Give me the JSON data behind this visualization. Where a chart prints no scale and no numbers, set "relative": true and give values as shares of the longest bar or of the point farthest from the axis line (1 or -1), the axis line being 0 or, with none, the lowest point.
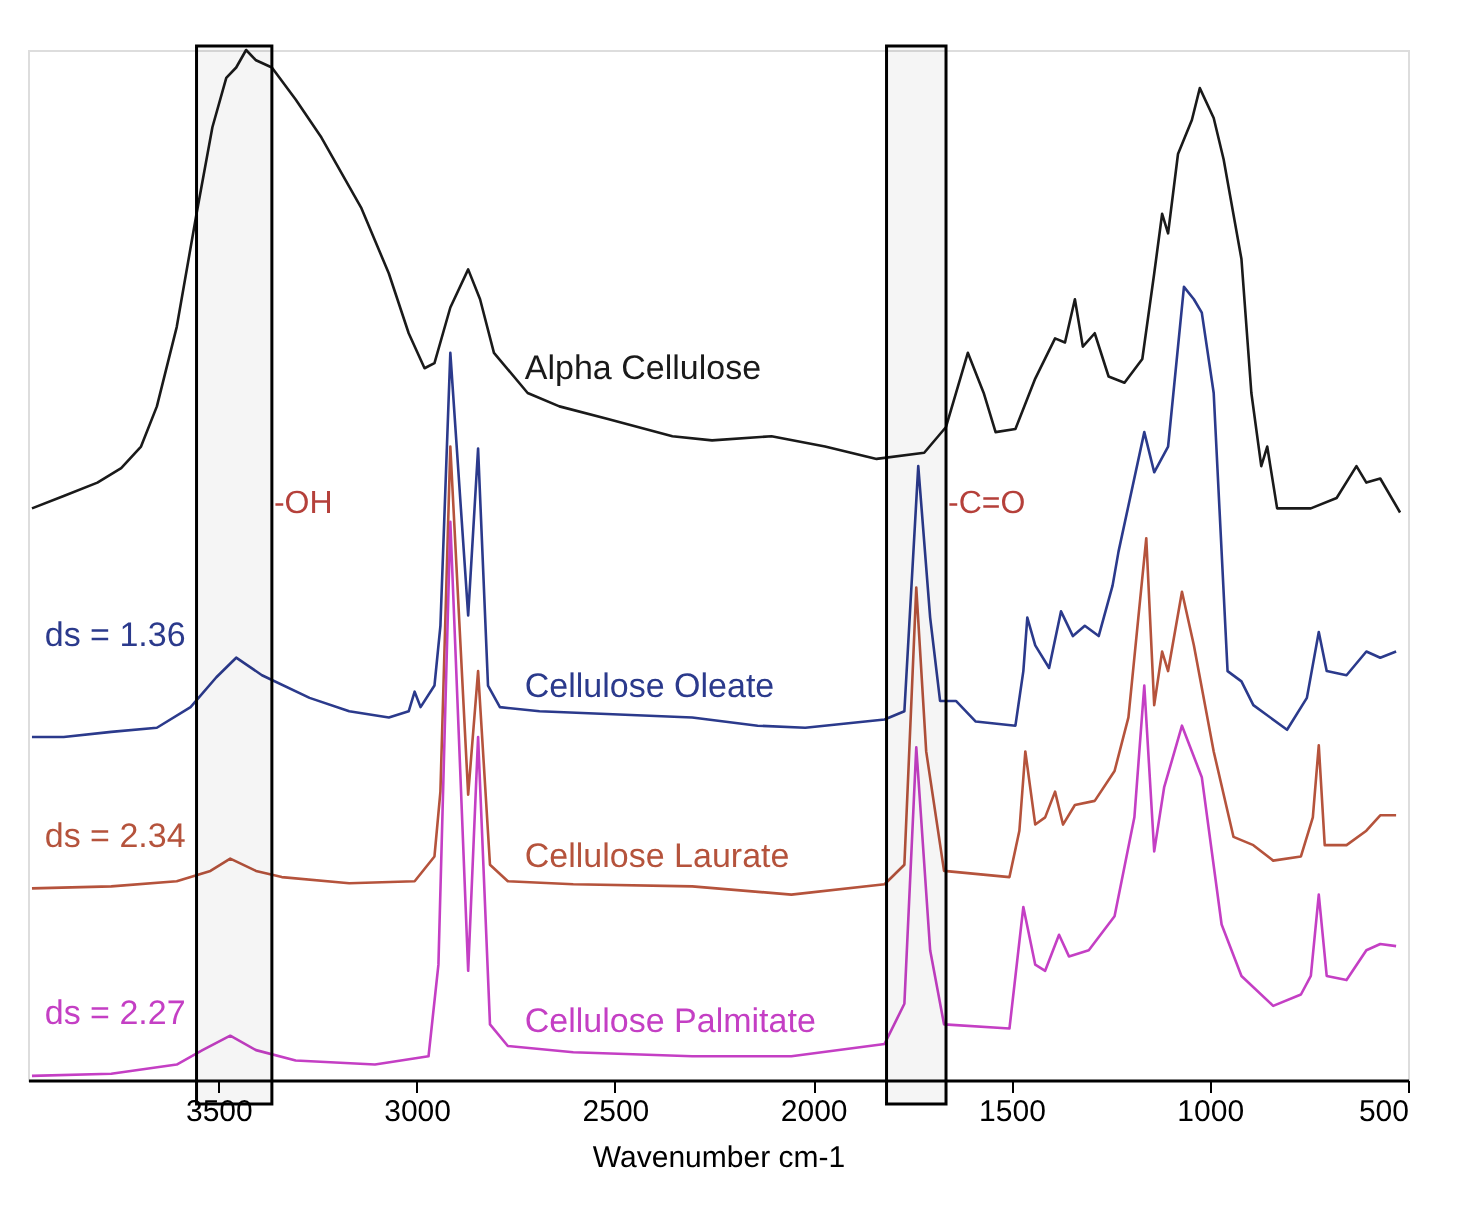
{
  "chart_data": {
    "type": "line",
    "relative": true,
    "xlabel": "Wavenumber cm-1",
    "xlim": [
      3980,
      500
    ],
    "xticks": [
      3500,
      3000,
      2500,
      2000,
      1500,
      1000,
      500
    ],
    "grid": false,
    "legend": false,
    "tick_labels": "x",
    "marker": "none",
    "line_style": "solid",
    "x": [
      3970,
      3890,
      3805,
      3745,
      3695,
      3655,
      3605,
      3555,
      3515,
      3480,
      3455,
      3430,
      3405,
      3365,
      3305,
      3240,
      3140,
      3070,
      3020,
      2980,
      2955,
      2915,
      2870,
      2840,
      2805,
      2720,
      2640,
      2520,
      2355,
      2255,
      2105,
      1970,
      1840,
      1720,
      1665,
      1610,
      1570,
      1540,
      1490,
      1440,
      1390,
      1365,
      1340,
      1320,
      1290,
      1255,
      1215,
      1170,
      1140,
      1120,
      1105,
      1080,
      1045,
      1025,
      990,
      965,
      920,
      895,
      870,
      855,
      830,
      745,
      680,
      630,
      605,
      570,
      520
    ],
    "series": [
      {
        "name": "Alpha Cellulose",
        "color": "#1a1a1a",
        "values": [
          0.555,
          0.567,
          0.58,
          0.594,
          0.615,
          0.654,
          0.731,
          0.841,
          0.925,
          0.973,
          0.983,
          1.0,
          0.99,
          0.983,
          0.952,
          0.915,
          0.847,
          0.783,
          0.725,
          0.691,
          0.696,
          0.75,
          0.787,
          0.758,
          0.706,
          0.667,
          0.654,
          0.642,
          0.625,
          0.621,
          0.625,
          0.615,
          0.603,
          0.609,
          0.634,
          0.706,
          0.667,
          0.629,
          0.632,
          0.681,
          0.72,
          0.716,
          0.758,
          0.712,
          0.725,
          0.683,
          0.677,
          0.7,
          0.783,
          0.841,
          0.822,
          0.899,
          0.932,
          0.963,
          0.934,
          0.894,
          0.797,
          0.667,
          0.596,
          0.615,
          0.555,
          0.555,
          0.565,
          0.596,
          0.58,
          0.584,
          0.551
        ]
      },
      {
        "name": "Cellulose Oleate",
        "color": "#2b3a8c",
        "x": [
          3970,
          3890,
          3770,
          3655,
          3570,
          3505,
          3455,
          3390,
          3270,
          3170,
          3070,
          3020,
          3005,
          2990,
          2955,
          2940,
          2915,
          2870,
          2845,
          2820,
          2790,
          2690,
          2305,
          2140,
          2020,
          1820,
          1770,
          1735,
          1705,
          1680,
          1640,
          1590,
          1490,
          1470,
          1460,
          1440,
          1405,
          1375,
          1345,
          1315,
          1280,
          1245,
          1230,
          1165,
          1140,
          1105,
          1065,
          1040,
          1020,
          990,
          955,
          920,
          890,
          805,
          755,
          725,
          705,
          655,
          605,
          570,
          530
        ],
        "values": [
          0.333,
          0.333,
          0.338,
          0.342,
          0.362,
          0.391,
          0.41,
          0.393,
          0.371,
          0.358,
          0.352,
          0.358,
          0.377,
          0.362,
          0.383,
          0.441,
          0.706,
          0.451,
          0.613,
          0.383,
          0.362,
          0.358,
          0.352,
          0.344,
          0.342,
          0.35,
          0.358,
          0.596,
          0.449,
          0.368,
          0.368,
          0.348,
          0.344,
          0.397,
          0.449,
          0.422,
          0.4,
          0.455,
          0.431,
          0.441,
          0.431,
          0.48,
          0.513,
          0.629,
          0.59,
          0.615,
          0.77,
          0.758,
          0.745,
          0.667,
          0.397,
          0.387,
          0.364,
          0.34,
          0.371,
          0.435,
          0.397,
          0.393,
          0.416,
          0.41,
          0.416
        ]
      },
      {
        "name": "Cellulose Laurate",
        "color": "#b5533c",
        "x": [
          3970,
          3770,
          3605,
          3520,
          3470,
          3405,
          3340,
          3170,
          3005,
          2955,
          2940,
          2915,
          2870,
          2845,
          2815,
          2770,
          2605,
          2305,
          2055,
          1820,
          1770,
          1740,
          1715,
          1670,
          1505,
          1480,
          1465,
          1440,
          1415,
          1390,
          1370,
          1340,
          1290,
          1240,
          1205,
          1180,
          1160,
          1140,
          1120,
          1105,
          1070,
          1040,
          990,
          940,
          890,
          840,
          770,
          740,
          725,
          710,
          655,
          605,
          570,
          530
        ],
        "values": [
          0.186,
          0.188,
          0.193,
          0.203,
          0.215,
          0.203,
          0.197,
          0.191,
          0.193,
          0.217,
          0.28,
          0.615,
          0.277,
          0.397,
          0.209,
          0.193,
          0.19,
          0.188,
          0.18,
          0.19,
          0.209,
          0.478,
          0.319,
          0.203,
          0.197,
          0.242,
          0.319,
          0.248,
          0.255,
          0.28,
          0.248,
          0.267,
          0.271,
          0.3,
          0.352,
          0.449,
          0.526,
          0.364,
          0.416,
          0.397,
          0.474,
          0.422,
          0.319,
          0.236,
          0.228,
          0.213,
          0.217,
          0.255,
          0.325,
          0.228,
          0.228,
          0.242,
          0.257,
          0.257
        ]
      },
      {
        "name": "Cellulose Palmitate",
        "color": "#c43fc4",
        "x": [
          3970,
          3770,
          3605,
          3540,
          3470,
          3405,
          3305,
          3105,
          2970,
          2945,
          2915,
          2870,
          2845,
          2815,
          2770,
          2605,
          2305,
          2055,
          1820,
          1770,
          1740,
          1705,
          1670,
          1505,
          1470,
          1440,
          1415,
          1380,
          1355,
          1305,
          1240,
          1190,
          1165,
          1140,
          1115,
          1070,
          1020,
          970,
          920,
          840,
          770,
          745,
          725,
          705,
          655,
          605,
          570,
          530
        ],
        "values": [
          0.004,
          0.006,
          0.015,
          0.029,
          0.043,
          0.029,
          0.019,
          0.015,
          0.023,
          0.112,
          0.542,
          0.106,
          0.333,
          0.054,
          0.033,
          0.027,
          0.023,
          0.023,
          0.035,
          0.074,
          0.323,
          0.126,
          0.054,
          0.05,
          0.168,
          0.112,
          0.106,
          0.141,
          0.12,
          0.126,
          0.159,
          0.255,
          0.383,
          0.222,
          0.284,
          0.344,
          0.294,
          0.151,
          0.101,
          0.072,
          0.083,
          0.101,
          0.18,
          0.101,
          0.097,
          0.126,
          0.132,
          0.13
        ]
      }
    ],
    "bands": [
      {
        "axis": "x",
        "from": 3555,
        "to": 3365,
        "label": "-OH",
        "color": "#000000"
      },
      {
        "axis": "x",
        "from": 1815,
        "to": 1665,
        "label": "-C=O",
        "color": "#000000"
      }
    ],
    "annotations": [
      "ds = 1.36",
      "ds = 2.34",
      "ds = 2.27"
    ]
  }
}
